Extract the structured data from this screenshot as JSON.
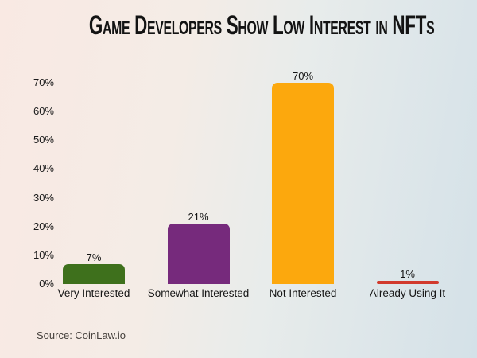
{
  "title": "Game Developers Show Low Interest in NFTs",
  "source": "Source: CoinLaw.io",
  "colors": {
    "background_left": "#f9e9e3",
    "background_right": "#d4e1e8",
    "title_color": "#131313",
    "axis_text_color": "#1b1b1b",
    "source_text_color": "#45403c"
  },
  "chart_data": {
    "type": "bar",
    "title": "Game Developers Show Low Interest in NFTs",
    "categories": [
      "Very Interested",
      "Somewhat Interested",
      "Not Interested",
      "Already Using It"
    ],
    "values": [
      7,
      21,
      70,
      1
    ],
    "value_labels": [
      "7%",
      "21%",
      "70%",
      "1%"
    ],
    "bar_colors": [
      "#3e701c",
      "#762a7c",
      "#fca80d",
      "#d13a2d"
    ],
    "xlabel": "",
    "ylabel": "",
    "ylim": [
      0,
      70
    ],
    "yticks": [
      0,
      10,
      20,
      30,
      40,
      50,
      60,
      70
    ],
    "ytick_labels": [
      "0%",
      "10%",
      "20%",
      "30%",
      "40%",
      "50%",
      "60%",
      "70%"
    ],
    "grid": false,
    "legend": false,
    "source": "Source: CoinLaw.io"
  }
}
